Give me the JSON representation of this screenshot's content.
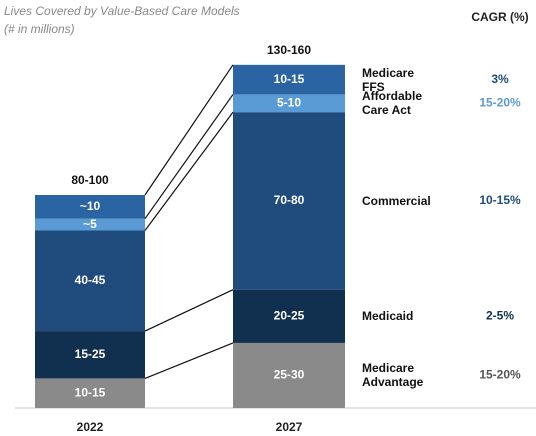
{
  "chart_data": {
    "type": "bar",
    "stacked": true,
    "title": "Lives Covered by Value-Based Care Models",
    "subtitle": "(# in millions)",
    "cagr_title": "CAGR (%)",
    "categories": [
      "2022",
      "2027"
    ],
    "total_labels": [
      "80-100",
      "130-160"
    ],
    "ylim": [
      0,
      150
    ],
    "series": [
      {
        "name": "Medicare Advantage",
        "color": "#8a8a8a",
        "text_color": "#555555",
        "values": [
          12.5,
          27.5
        ],
        "value_labels": [
          "10-15",
          "25-30"
        ],
        "cagr": "15-20%"
      },
      {
        "name": "Medicaid",
        "color": "#11304f",
        "text_color": "#11304f",
        "values": [
          20,
          22.5
        ],
        "value_labels": [
          "15-25",
          "20-25"
        ],
        "cagr": "2-5%"
      },
      {
        "name": "Commercial",
        "color": "#1f4c7c",
        "text_color": "#1f4c7c",
        "values": [
          42.5,
          75
        ],
        "value_labels": [
          "40-45",
          "70-80"
        ],
        "cagr": "10-15%"
      },
      {
        "name": "Affordable Care Act",
        "color": "#5b9bd5",
        "text_color": "#5b9bd5",
        "values": [
          5,
          7.5
        ],
        "value_labels": [
          "~5",
          "5-10"
        ],
        "cagr": "15-20%"
      },
      {
        "name": "Medicare FFS",
        "color": "#2b64a2",
        "text_color": "#1f4c7c",
        "values": [
          10,
          12.5
        ],
        "value_labels": [
          "~10",
          "10-15"
        ],
        "cagr": "3%"
      }
    ]
  }
}
